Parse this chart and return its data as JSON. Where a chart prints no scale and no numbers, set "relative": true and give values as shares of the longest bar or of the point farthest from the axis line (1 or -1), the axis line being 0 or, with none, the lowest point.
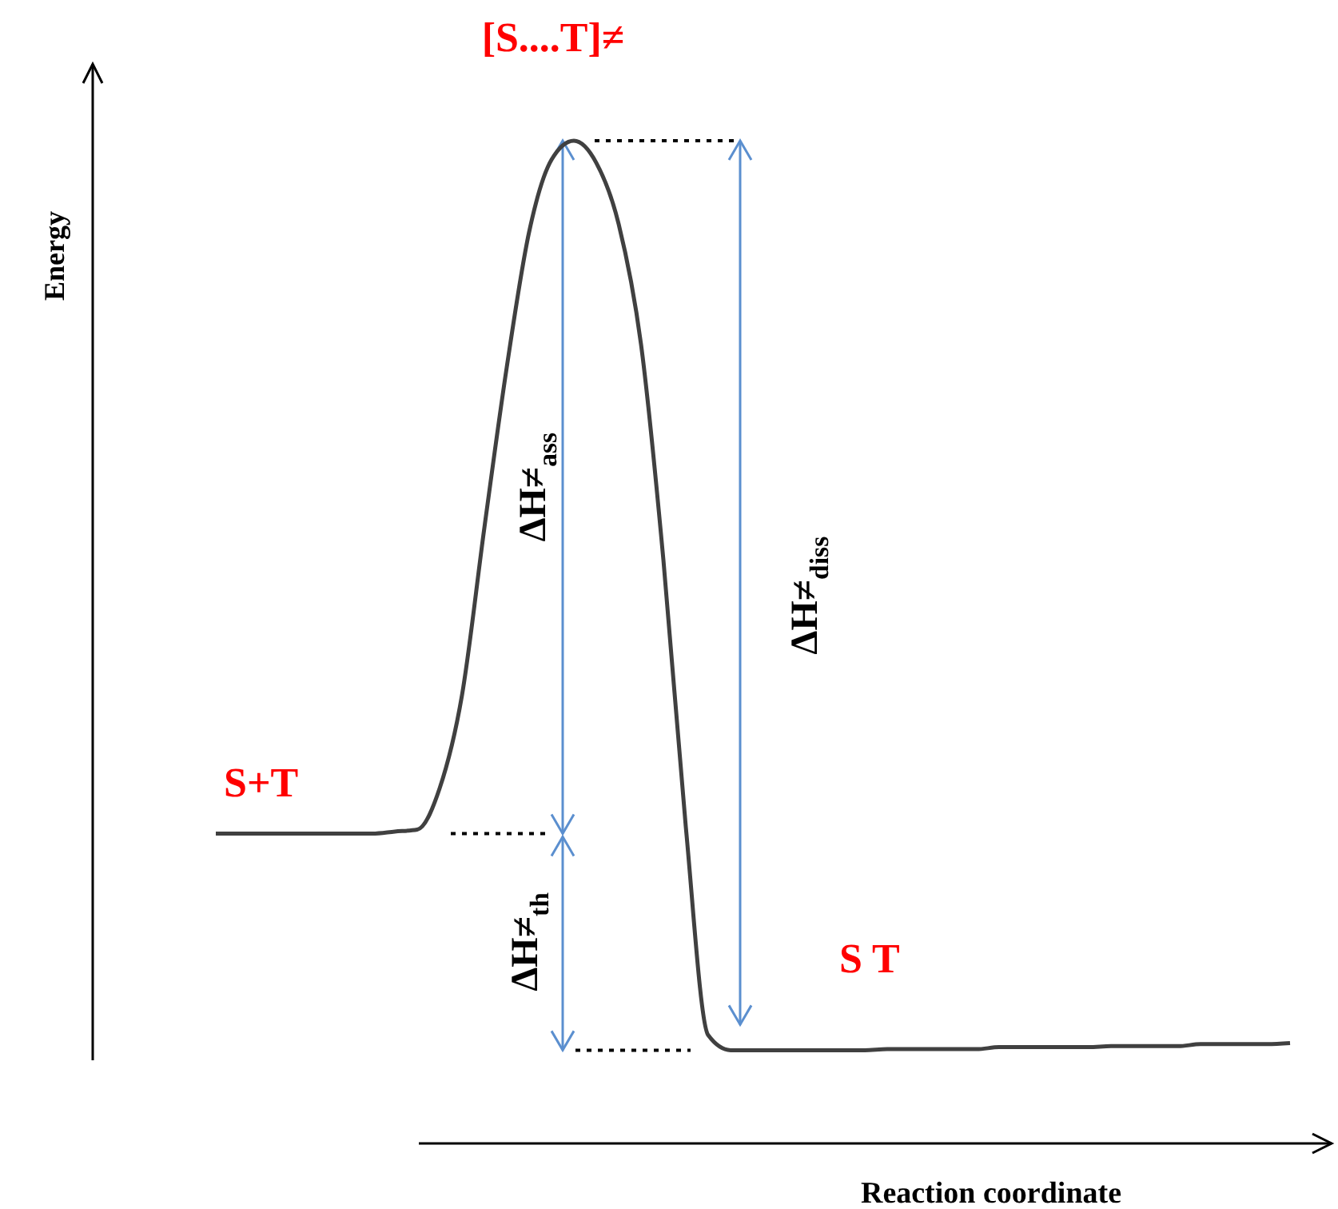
{
  "chart_data": {
    "type": "line",
    "relative": true,
    "xlabel": "Reaction coordinate",
    "ylabel": "Energy",
    "marker": "none",
    "categories": [
      null,
      null,
      null,
      null,
      null,
      null,
      null,
      null,
      null,
      null,
      null,
      null,
      null,
      null,
      null,
      null,
      null,
      null,
      null,
      null,
      null,
      null,
      null,
      null,
      null,
      null,
      null,
      null,
      null,
      null,
      null,
      null,
      null,
      null,
      null,
      null,
      null,
      null,
      null,
      null,
      null,
      null,
      null,
      null,
      null,
      null,
      null,
      null,
      null
    ],
    "series": [
      {
        "color": "#404040",
        "values": [
          0.309,
          0.309,
          0.309,
          0.309,
          0.309,
          0.309,
          0.309,
          0.309,
          0.311,
          0.313,
          0.354,
          0.447,
          0.614,
          0.774,
          0.909,
          0.981,
          1,
          0.978,
          0.917,
          0.797,
          0.582,
          0.316,
          0.108,
          0.093,
          0.093,
          0.093,
          0.093,
          0.093,
          0.093,
          0.093,
          0.094,
          0.094,
          0.094,
          0.094,
          0.094,
          0.096,
          0.096,
          0.096,
          0.096,
          0.096,
          0.097,
          0.097,
          0.097,
          0.097,
          0.099,
          0.099,
          0.099,
          0.099,
          0.1
        ]
      }
    ],
    "ref_lines": [
      {
        "axis": "y",
        "value": 1,
        "line_style": "dotted",
        "color": "#000000"
      },
      {
        "axis": "y",
        "value": 0.309,
        "line_style": "dotted",
        "color": "#000000"
      },
      {
        "axis": "y",
        "value": 0.093,
        "line_style": "dotted",
        "color": "#000000"
      }
    ],
    "annotations": [
      "[S....T]≠",
      "S+T",
      "S T",
      "ΔH≠$_{ass}$",
      "ΔH≠$_{diss}$",
      "ΔH≠$_{th}$"
    ]
  }
}
